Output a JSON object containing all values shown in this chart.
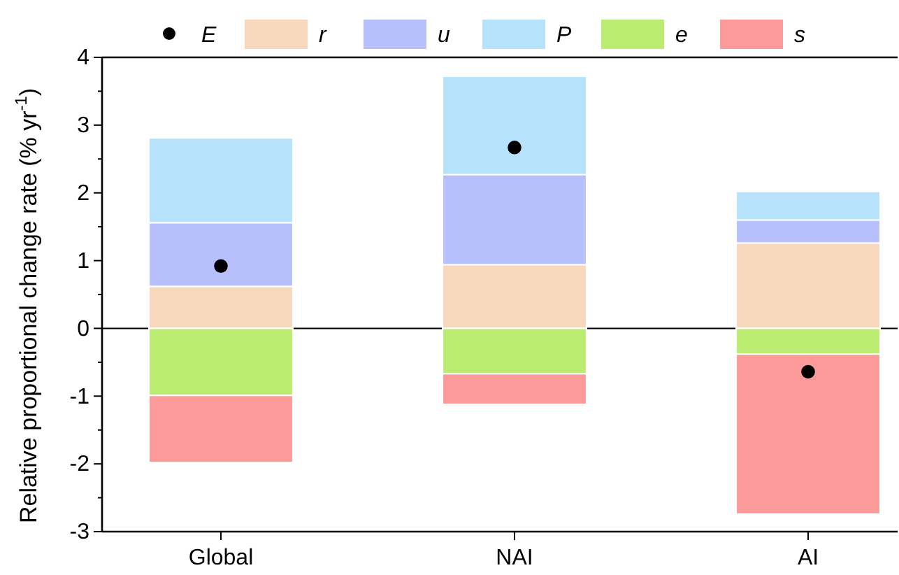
{
  "chart_data": {
    "type": "bar",
    "stacked": true,
    "ylabel": "Relative proportional change rate (% yr$^{-1}$)",
    "categories": [
      "Global",
      "NAI",
      "AI"
    ],
    "series": [
      {
        "name": "E",
        "type": "scatter",
        "color": "#000000",
        "values": [
          0.92,
          2.67,
          -0.64
        ]
      },
      {
        "name": "r",
        "color": "#f8d8bc",
        "values": [
          0.62,
          0.94,
          1.26
        ]
      },
      {
        "name": "u",
        "color": "#b8c0fb",
        "values": [
          0.94,
          1.33,
          0.34
        ]
      },
      {
        "name": "P",
        "color": "#b6e2fb",
        "values": [
          1.25,
          1.45,
          0.42
        ]
      },
      {
        "name": "e",
        "color": "#bbeb70",
        "values": [
          -0.99,
          -0.67,
          -0.38
        ]
      },
      {
        "name": "s",
        "color": "#fb9a98",
        "values": [
          -0.99,
          -0.45,
          -2.36
        ]
      }
    ],
    "ylim": [
      -3,
      4
    ],
    "yticks": [
      -3,
      -2,
      -1,
      0,
      1,
      2,
      3,
      4
    ],
    "ref_lines": [
      {
        "axis": "y",
        "value": 0,
        "color": "#000000"
      }
    ],
    "marker": "circle",
    "legend": "top",
    "grid": false
  }
}
